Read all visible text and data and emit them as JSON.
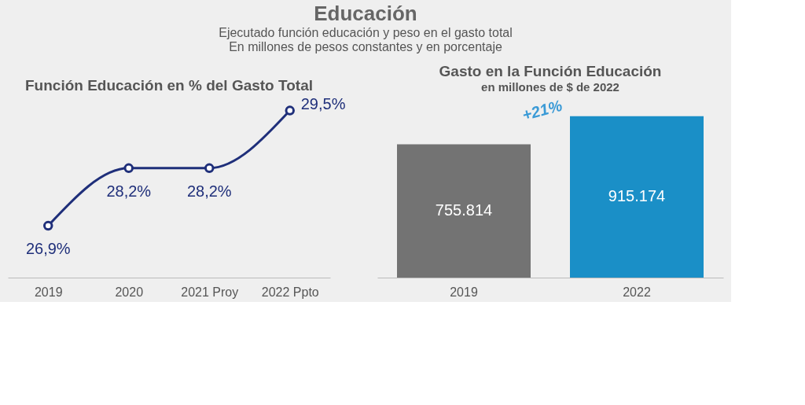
{
  "chart_data": [
    {
      "type": "other",
      "title": "Educación",
      "subtitle": "Ejecutado función educación y peso en el gasto total",
      "annotations": [
        "En millones de pesos constantes y en porcentaje"
      ]
    },
    {
      "type": "line",
      "title": "Función Educación en % del Gasto Total",
      "categories": [
        "2019",
        "2020",
        "2021 Proy",
        "2022 Ppto"
      ],
      "series": [
        {
          "color": "#1f2f7a",
          "values": [
            26.9,
            28.2,
            28.2,
            29.5
          ],
          "value_labels": [
            "26,9%",
            "28,2%",
            "28,2%",
            "29,5%"
          ]
        }
      ],
      "marker": "circle",
      "tick_labels": "x",
      "grid": false
    },
    {
      "type": "bar",
      "title": "Gasto en la Función Educación",
      "subtitle": "en millones de $ de 2022",
      "categories": [
        "2019",
        "2022"
      ],
      "values": [
        755814,
        915174
      ],
      "colors": [
        "#737373",
        "#1a8fc7"
      ],
      "value_labels": [
        "755.814",
        "915.174"
      ],
      "annotations": [
        "+21%"
      ],
      "tick_labels": "x",
      "grid": false
    }
  ]
}
